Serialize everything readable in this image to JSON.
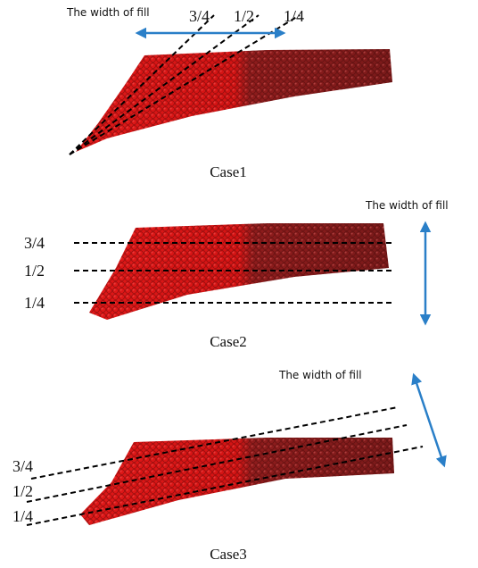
{
  "panels": [
    {
      "width_label": "The width of fill",
      "fractions": [
        "3/4",
        "1/2",
        "1/4"
      ],
      "caption": "Case1"
    },
    {
      "width_label": "The width of fill",
      "fractions": [
        "3/4",
        "1/2",
        "1/4"
      ],
      "caption": "Case2"
    },
    {
      "width_label": "The width of fill",
      "fractions": [
        "3/4",
        "1/2",
        "1/4"
      ],
      "caption": "Case3"
    }
  ]
}
